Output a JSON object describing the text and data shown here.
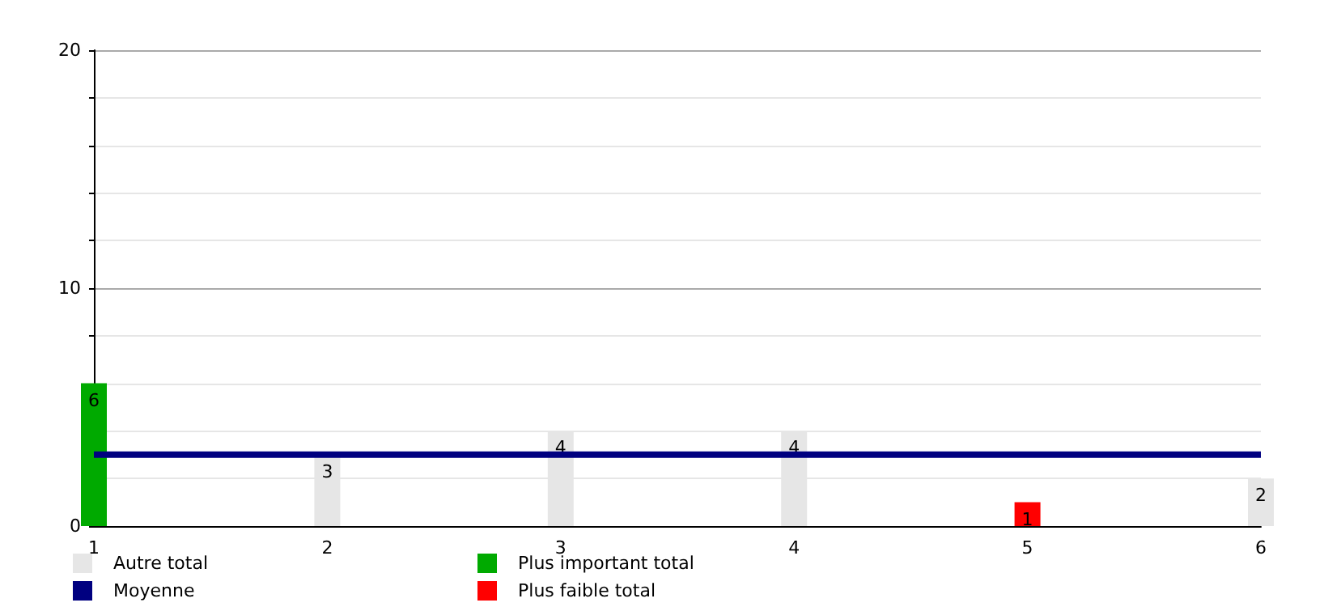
{
  "chart_data": {
    "type": "bar",
    "categories": [
      "1",
      "2",
      "3",
      "4",
      "5",
      "6"
    ],
    "series": [
      {
        "name": "Autre total",
        "color": "#e6e6e6",
        "values": [
          null,
          3,
          4,
          4,
          null,
          2
        ],
        "value_labels": [
          null,
          "3",
          "4",
          "4",
          null,
          "2"
        ]
      },
      {
        "name": "Moyenne",
        "type": "line",
        "color": "#000080",
        "values": [
          3,
          3,
          3,
          3,
          3,
          3
        ]
      },
      {
        "name": "Plus important total",
        "color": "#00aa00",
        "values": [
          6,
          null,
          null,
          null,
          null,
          null
        ],
        "value_labels": [
          "6",
          null,
          null,
          null,
          null,
          null
        ]
      },
      {
        "name": "Plus faible total",
        "color": "#ff0000",
        "values": [
          null,
          null,
          null,
          null,
          1,
          null
        ],
        "value_labels": [
          null,
          null,
          null,
          null,
          "1",
          null
        ]
      }
    ],
    "stacked": true,
    "marker": "none",
    "line_style": "solid",
    "ylim": [
      0,
      20
    ],
    "yticks": [
      0,
      {
        "value": 2,
        "label": null
      },
      {
        "value": 4,
        "label": null
      },
      {
        "value": 6,
        "label": null
      },
      {
        "value": 8,
        "label": null
      },
      10,
      {
        "value": 12,
        "label": null
      },
      {
        "value": 14,
        "label": null
      },
      {
        "value": 16,
        "label": null
      },
      {
        "value": 18,
        "label": null
      },
      20
    ],
    "grid": true,
    "legend": "bottom left"
  }
}
